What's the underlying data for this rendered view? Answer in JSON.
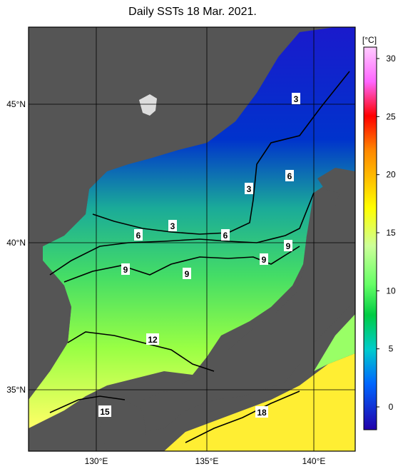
{
  "title": "Daily SSTs 18 Mar. 2021.",
  "colorbar": {
    "unit": "[°C]",
    "ticks": [
      "30",
      "25",
      "20",
      "15",
      "10",
      "5",
      "0"
    ],
    "gradient_colors": [
      "#ff99ff",
      "#ff00ff",
      "#ff0000",
      "#ff8800",
      "#ffff00",
      "#ccff99",
      "#66ff66",
      "#00cc44",
      "#00cccc",
      "#0066ff",
      "#0000cc",
      "#3300aa"
    ]
  },
  "axes": {
    "lat_labels": [
      "45°N",
      "40°N",
      "35°N"
    ],
    "lon_labels": [
      "130°E",
      "135°E",
      "140°E"
    ]
  },
  "contour_labels": [
    "3",
    "6",
    "9",
    "12",
    "15",
    "18"
  ],
  "map_labels": [
    "3",
    "3",
    "3",
    "6",
    "6",
    "6",
    "9",
    "9",
    "9",
    "9",
    "12",
    "15",
    "18"
  ],
  "colors": {
    "land": "#555555",
    "frame": "#000000",
    "grid": "#000000"
  }
}
